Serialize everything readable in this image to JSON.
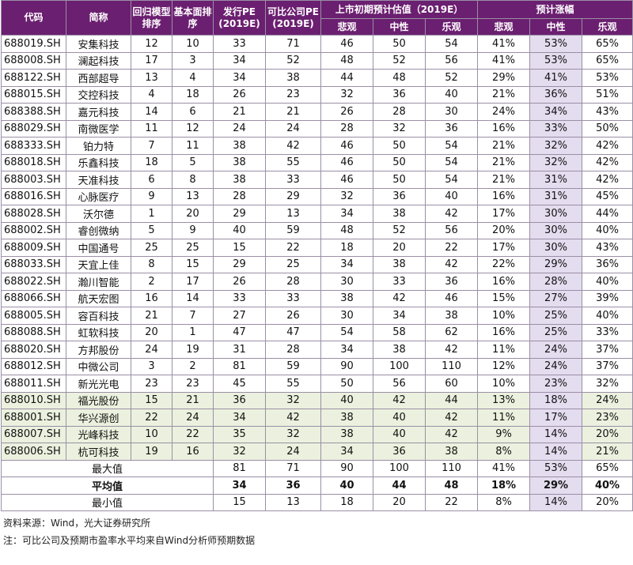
{
  "table": {
    "headers": [
      "代码",
      "简称",
      "回归模型排序",
      "基本面排序",
      "发行PE (2019E)",
      "可比公司PE (2019E)",
      "上市初期预计估值（2019E）",
      "预计涨幅"
    ],
    "subheaders": [
      "悲观",
      "中性",
      "乐观",
      "悲观",
      "中性",
      "乐观"
    ],
    "rows": [
      [
        "688019.SH",
        "安集科技",
        "12",
        "10",
        "33",
        "71",
        "46",
        "50",
        "54",
        "41%",
        "53%",
        "65%"
      ],
      [
        "688008.SH",
        "澜起科技",
        "17",
        "3",
        "34",
        "52",
        "48",
        "52",
        "56",
        "41%",
        "53%",
        "65%"
      ],
      [
        "688122.SH",
        "西部超导",
        "13",
        "4",
        "34",
        "38",
        "44",
        "48",
        "52",
        "29%",
        "41%",
        "53%"
      ],
      [
        "688015.SH",
        "交控科技",
        "4",
        "18",
        "26",
        "23",
        "32",
        "36",
        "40",
        "21%",
        "36%",
        "51%"
      ],
      [
        "688388.SH",
        "嘉元科技",
        "14",
        "6",
        "21",
        "21",
        "26",
        "28",
        "30",
        "24%",
        "34%",
        "43%"
      ],
      [
        "688029.SH",
        "南微医学",
        "11",
        "12",
        "24",
        "24",
        "28",
        "32",
        "36",
        "16%",
        "33%",
        "50%"
      ],
      [
        "688333.SH",
        "铂力特",
        "7",
        "11",
        "38",
        "42",
        "46",
        "50",
        "54",
        "21%",
        "32%",
        "42%"
      ],
      [
        "688018.SH",
        "乐鑫科技",
        "18",
        "5",
        "38",
        "55",
        "46",
        "50",
        "54",
        "21%",
        "32%",
        "42%"
      ],
      [
        "688003.SH",
        "天准科技",
        "6",
        "8",
        "38",
        "33",
        "46",
        "50",
        "54",
        "21%",
        "31%",
        "42%"
      ],
      [
        "688016.SH",
        "心脉医疗",
        "9",
        "13",
        "28",
        "29",
        "32",
        "36",
        "40",
        "16%",
        "31%",
        "45%"
      ],
      [
        "688028.SH",
        "沃尔德",
        "1",
        "20",
        "29",
        "13",
        "34",
        "38",
        "42",
        "17%",
        "30%",
        "44%"
      ],
      [
        "688002.SH",
        "睿创微纳",
        "5",
        "9",
        "40",
        "59",
        "48",
        "52",
        "56",
        "20%",
        "30%",
        "40%"
      ],
      [
        "688009.SH",
        "中国通号",
        "25",
        "25",
        "15",
        "22",
        "18",
        "20",
        "22",
        "17%",
        "30%",
        "43%"
      ],
      [
        "688033.SH",
        "天宜上佳",
        "8",
        "15",
        "29",
        "25",
        "34",
        "38",
        "42",
        "22%",
        "29%",
        "36%"
      ],
      [
        "688022.SH",
        "瀚川智能",
        "2",
        "17",
        "26",
        "28",
        "30",
        "33",
        "36",
        "16%",
        "28%",
        "40%"
      ],
      [
        "688066.SH",
        "航天宏图",
        "16",
        "14",
        "33",
        "33",
        "38",
        "42",
        "46",
        "15%",
        "27%",
        "39%"
      ],
      [
        "688005.SH",
        "容百科技",
        "21",
        "7",
        "27",
        "26",
        "30",
        "34",
        "38",
        "10%",
        "25%",
        "40%"
      ],
      [
        "688088.SH",
        "虹软科技",
        "20",
        "1",
        "47",
        "47",
        "54",
        "58",
        "62",
        "16%",
        "25%",
        "33%"
      ],
      [
        "688020.SH",
        "方邦股份",
        "24",
        "19",
        "31",
        "28",
        "34",
        "38",
        "42",
        "11%",
        "24%",
        "37%"
      ],
      [
        "688012.SH",
        "中微公司",
        "3",
        "2",
        "81",
        "59",
        "90",
        "100",
        "110",
        "12%",
        "24%",
        "37%"
      ],
      [
        "688011.SH",
        "新光光电",
        "23",
        "23",
        "45",
        "55",
        "50",
        "56",
        "60",
        "10%",
        "23%",
        "32%"
      ],
      [
        "688010.SH",
        "福光股份",
        "15",
        "21",
        "36",
        "32",
        "40",
        "42",
        "44",
        "13%",
        "18%",
        "24%"
      ],
      [
        "688001.SH",
        "华兴源创",
        "22",
        "24",
        "34",
        "42",
        "38",
        "40",
        "42",
        "11%",
        "17%",
        "23%"
      ],
      [
        "688007.SH",
        "光峰科技",
        "10",
        "22",
        "35",
        "32",
        "38",
        "40",
        "42",
        "9%",
        "14%",
        "20%"
      ],
      [
        "688006.SH",
        "杭可科技",
        "19",
        "16",
        "32",
        "24",
        "34",
        "36",
        "38",
        "8%",
        "14%",
        "21%"
      ]
    ],
    "summary": [
      [
        "最大值",
        "81",
        "71",
        "90",
        "100",
        "110",
        "41%",
        "53%",
        "65%"
      ],
      [
        "平均值",
        "34",
        "36",
        "40",
        "44",
        "48",
        "18%",
        "29%",
        "40%"
      ],
      [
        "最小值",
        "15",
        "13",
        "18",
        "20",
        "22",
        "8%",
        "14%",
        "20%"
      ]
    ]
  },
  "footer": {
    "source": "资料来源：Wind，光大证券研究所",
    "note": "注：可比公司及预期市盈率水平均来自Wind分析师预期数据"
  }
}
